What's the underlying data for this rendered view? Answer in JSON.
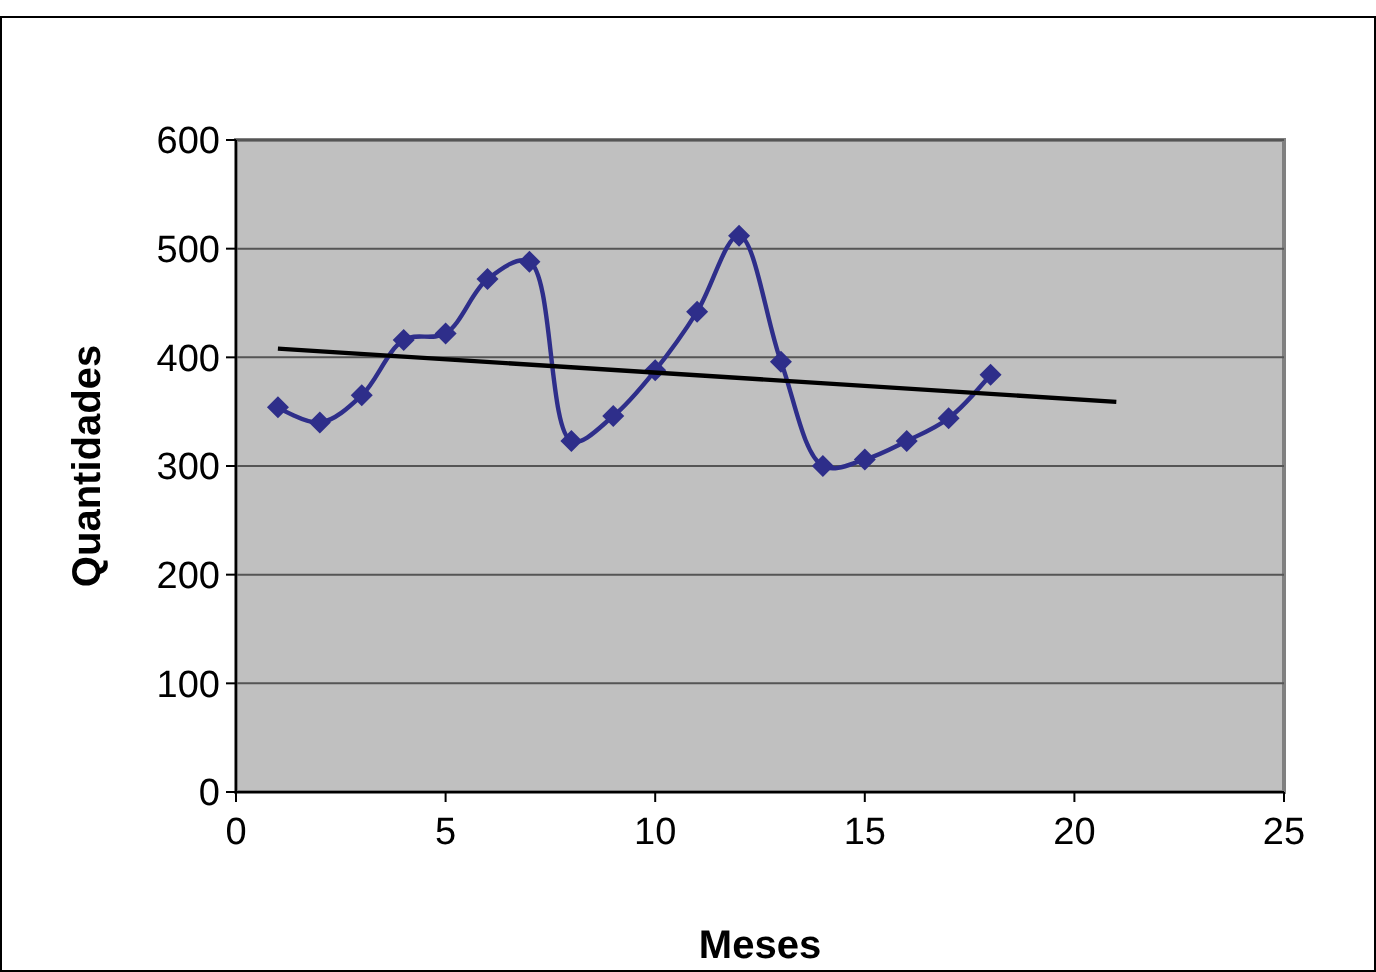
{
  "chart_data": {
    "type": "line",
    "xlabel": "Meses",
    "ylabel": "Quantidades",
    "xlim": [
      0,
      25
    ],
    "xticks": [
      0,
      5,
      10,
      15,
      20,
      25
    ],
    "ylim": [
      0,
      600
    ],
    "yticks": [
      0,
      100,
      200,
      300,
      400,
      500,
      600
    ],
    "grid": "y",
    "series": [
      {
        "color": "#2e2e8a",
        "marker": "diamond",
        "x": [
          1,
          2,
          3,
          4,
          5,
          6,
          7,
          8,
          9,
          10,
          11,
          12,
          13,
          14,
          15,
          16,
          17,
          18
        ],
        "values": [
          354,
          340,
          365,
          416,
          422,
          472,
          488,
          323,
          346,
          388,
          442,
          512,
          396,
          300,
          306,
          323,
          344,
          384
        ]
      },
      {
        "color": "#000000",
        "marker": "none",
        "x": [
          1,
          21
        ],
        "values": [
          408,
          359
        ]
      }
    ]
  }
}
